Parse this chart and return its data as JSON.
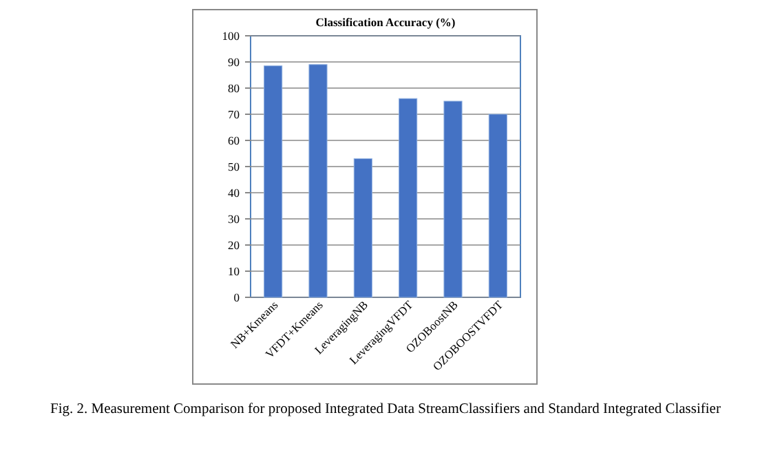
{
  "chart_data": {
    "type": "bar",
    "title": "Classification Accuracy (%)",
    "categories": [
      "NB+Kmeans",
      "VFDT+Kmeans",
      "LeveragingNB",
      "LeveragingVFDT",
      "OZOBoostNB",
      "OZOBOOSTVFDT"
    ],
    "values": [
      88.5,
      89,
      53,
      76,
      75,
      70
    ],
    "color": "#4472c4",
    "ylim": [
      0,
      100
    ],
    "yticks": [
      0,
      10,
      20,
      30,
      40,
      50,
      60,
      70,
      80,
      90,
      100
    ],
    "grid": "y",
    "annotations": [
      "Fig. 2. Measurement Comparison for proposed Integrated Data StreamClassifiers and Standard Integrated Classifier"
    ]
  }
}
